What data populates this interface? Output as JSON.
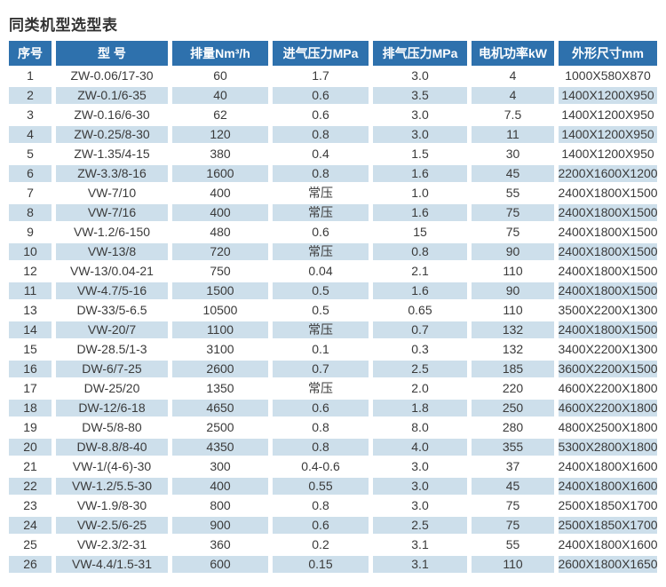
{
  "page": {
    "title": "同类机型选型表"
  },
  "theme": {
    "header_bg": "#2e71ad",
    "header_text": "#ffffff",
    "stripe_bg": "#cddfeb",
    "row_bg": "#ffffff",
    "text_color": "#3a3a3a",
    "title_color": "#333333"
  },
  "table": {
    "columns": [
      "序号",
      "型  号",
      "排量Nm³/h",
      "进气压力MPa",
      "排气压力MPa",
      "电机功率kW",
      "外形尺寸mm"
    ],
    "rows": [
      [
        "1",
        "ZW-0.06/17-30",
        "60",
        "1.7",
        "3.0",
        "4",
        "1000X580X870"
      ],
      [
        "2",
        "ZW-0.1/6-35",
        "40",
        "0.6",
        "3.5",
        "4",
        "1400X1200X950"
      ],
      [
        "3",
        "ZW-0.16/6-30",
        "62",
        "0.6",
        "3.0",
        "7.5",
        "1400X1200X950"
      ],
      [
        "4",
        "ZW-0.25/8-30",
        "120",
        "0.8",
        "3.0",
        "11",
        "1400X1200X950"
      ],
      [
        "5",
        "ZW-1.35/4-15",
        "380",
        "0.4",
        "1.5",
        "30",
        "1400X1200X950"
      ],
      [
        "6",
        "ZW-3.3/8-16",
        "1600",
        "0.8",
        "1.6",
        "45",
        "2200X1600X1200"
      ],
      [
        "7",
        "VW-7/10",
        "400",
        "常压",
        "1.0",
        "55",
        "2400X1800X1500"
      ],
      [
        "8",
        "VW-7/16",
        "400",
        "常压",
        "1.6",
        "75",
        "2400X1800X1500"
      ],
      [
        "9",
        "VW-1.2/6-150",
        "480",
        "0.6",
        "15",
        "75",
        "2400X1800X1500"
      ],
      [
        "10",
        "VW-13/8",
        "720",
        "常压",
        "0.8",
        "90",
        "2400X1800X1500"
      ],
      [
        "12",
        "VW-13/0.04-21",
        "750",
        "0.04",
        "2.1",
        "110",
        "2400X1800X1500"
      ],
      [
        "11",
        "VW-4.7/5-16",
        "1500",
        "0.5",
        "1.6",
        "90",
        "2400X1800X1500"
      ],
      [
        "13",
        "DW-33/5-6.5",
        "10500",
        "0.5",
        "0.65",
        "110",
        "3500X2200X1300"
      ],
      [
        "14",
        "VW-20/7",
        "1100",
        "常压",
        "0.7",
        "132",
        "2400X1800X1500"
      ],
      [
        "15",
        "DW-28.5/1-3",
        "3100",
        "0.1",
        "0.3",
        "132",
        "3400X2200X1300"
      ],
      [
        "16",
        "DW-6/7-25",
        "2600",
        "0.7",
        "2.5",
        "185",
        "3600X2200X1500"
      ],
      [
        "17",
        "DW-25/20",
        "1350",
        "常压",
        "2.0",
        "220",
        "4600X2200X1800"
      ],
      [
        "18",
        "DW-12/6-18",
        "4650",
        "0.6",
        "1.8",
        "250",
        "4600X2200X1800"
      ],
      [
        "19",
        "DW-5/8-80",
        "2500",
        "0.8",
        "8.0",
        "280",
        "4800X2500X1800"
      ],
      [
        "20",
        "DW-8.8/8-40",
        "4350",
        "0.8",
        "4.0",
        "355",
        "5300X2800X1800"
      ],
      [
        "21",
        "VW-1/(4-6)-30",
        "300",
        "0.4-0.6",
        "3.0",
        "37",
        "2400X1800X1600"
      ],
      [
        "22",
        "VW-1.2/5.5-30",
        "400",
        "0.55",
        "3.0",
        "45",
        "2400X1800X1600"
      ],
      [
        "23",
        "VW-1.9/8-30",
        "800",
        "0.8",
        "3.0",
        "75",
        "2500X1850X1700"
      ],
      [
        "24",
        "VW-2.5/6-25",
        "900",
        "0.6",
        "2.5",
        "75",
        "2500X1850X1700"
      ],
      [
        "25",
        "VW-2.3/2-31",
        "360",
        "0.2",
        "3.1",
        "55",
        "2400X1800X1600"
      ],
      [
        "26",
        "VW-4.4/1.5-31",
        "600",
        "0.15",
        "3.1",
        "110",
        "2600X1800X1650"
      ]
    ]
  }
}
